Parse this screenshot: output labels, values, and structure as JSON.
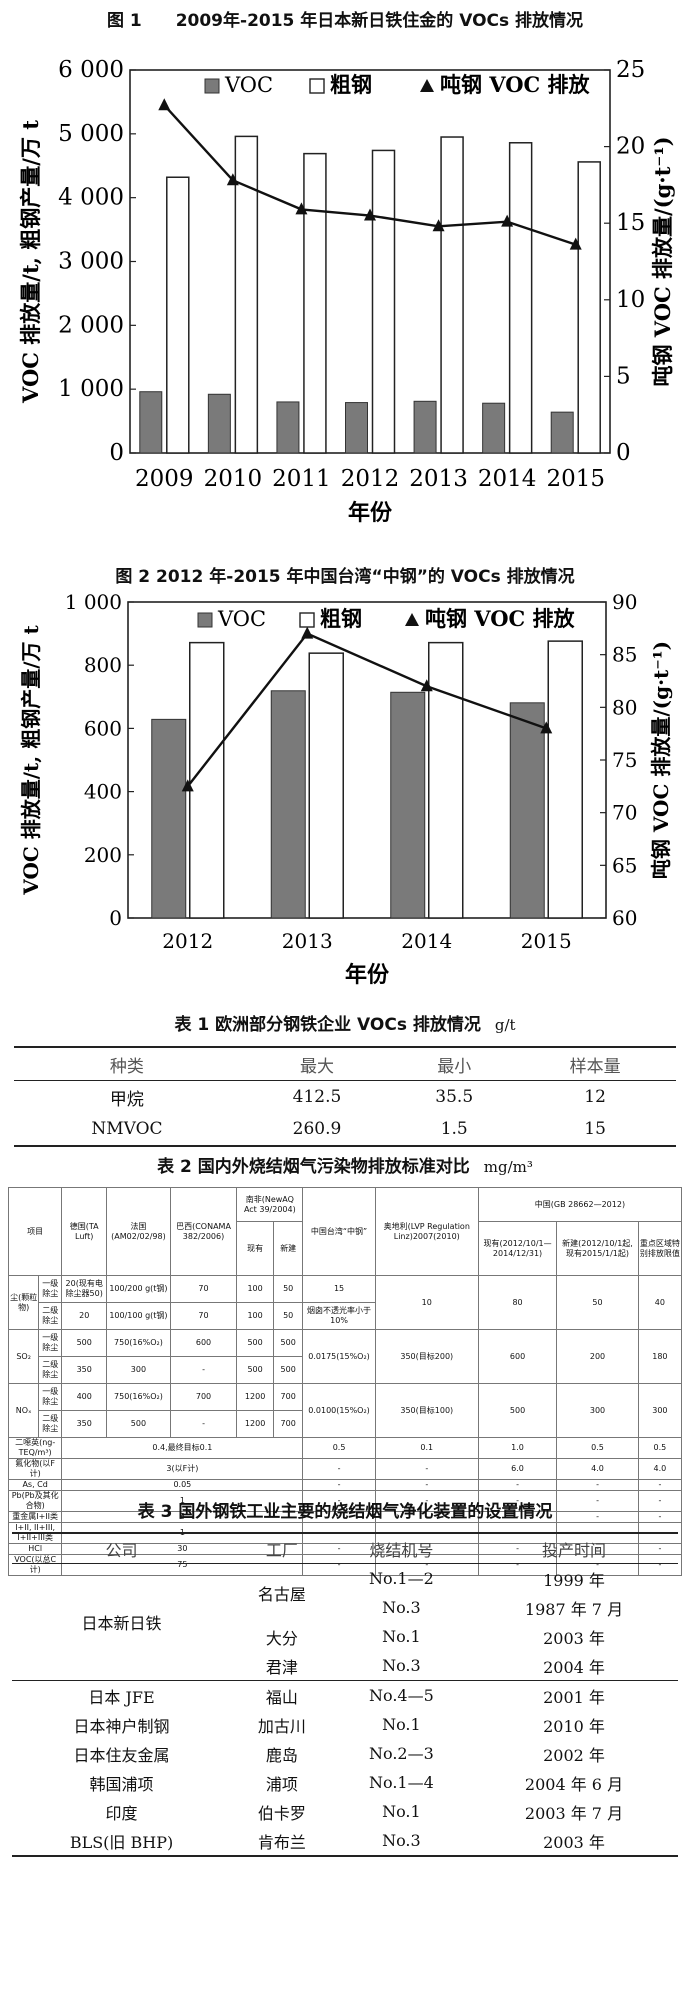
{
  "figures": [
    {
      "title": "图 1　　2009年-2015 年日本新日铁住金的 VOCs 排放情况",
      "chart_data": {
        "type": "bar",
        "categories": [
          "2009",
          "2010",
          "2011",
          "2012",
          "2013",
          "2014",
          "2015"
        ],
        "series": [
          {
            "name": "VOC",
            "kind": "bar",
            "axis": "left",
            "color": "#7a7a7a",
            "values": [
              960,
              920,
              800,
              790,
              810,
              780,
              640
            ]
          },
          {
            "name": "粗钢",
            "kind": "bar",
            "axis": "left",
            "color": "#ffffff",
            "values": [
              4320,
              4960,
              4690,
              4740,
              4950,
              4860,
              4560
            ]
          },
          {
            "name": "吨钢 VOC 排放",
            "kind": "line",
            "axis": "right",
            "color": "#111111",
            "values": [
              22.7,
              17.8,
              15.9,
              15.5,
              14.8,
              15.1,
              13.6
            ]
          }
        ],
        "xlabel": "年份",
        "ylabel": "VOC 排放量/t, 粗钢产量/万 t",
        "y2label": "吨钢 VOC 排放量/(g·t⁻¹)",
        "ylim": [
          0,
          6000
        ],
        "y2lim": [
          0,
          25
        ],
        "yticks": [
          "0",
          "1 000",
          "2 000",
          "3 000",
          "4 000",
          "5 000",
          "6 000"
        ],
        "y2ticks": [
          "0",
          "5",
          "10",
          "15",
          "20",
          "25"
        ],
        "legend": "top"
      }
    },
    {
      "title": "图 2 2012 年-2015 年中国台湾“中钢”的 VOCs 排放情况",
      "chart_data": {
        "type": "bar",
        "categories": [
          "2012",
          "2013",
          "2014",
          "2015"
        ],
        "series": [
          {
            "name": "VOC",
            "kind": "bar",
            "axis": "left",
            "color": "#7a7a7a",
            "values": [
              660,
              755,
              750,
              715
            ]
          },
          {
            "name": "粗钢",
            "kind": "bar",
            "axis": "left",
            "color": "#ffffff",
            "values": [
              915,
              880,
              915,
              920
            ]
          },
          {
            "name": "吨钢 VOC 排放",
            "kind": "line",
            "axis": "right",
            "color": "#111111",
            "values": [
              72.5,
              87,
              82,
              78
            ]
          }
        ],
        "xlabel": "年份",
        "ylabel": "VOC 排放量/t, 粗钢产量/万 t",
        "y2label": "吨钢 VOC 排放量/(g·t⁻¹)",
        "ylim": [
          0,
          1050
        ],
        "y2lim": [
          60,
          90
        ],
        "yticks": [
          "0",
          "200",
          "400",
          "600",
          "800",
          "1 000"
        ],
        "y2ticks": [
          "60",
          "65",
          "70",
          "75",
          "80",
          "85",
          "90"
        ],
        "legend": "top"
      }
    }
  ],
  "table1": {
    "title": "表 1 欧洲部分钢铁企业 VOCs 排放情况",
    "unit": "g/t",
    "headers": [
      "种类",
      "最大",
      "最小",
      "样本量"
    ],
    "rows": [
      [
        "甲烷",
        "412.5",
        "35.5",
        "12"
      ],
      [
        "NMVOC",
        "260.9",
        "1.5",
        "15"
      ]
    ]
  },
  "table2": {
    "title": "表 2 国内外烧结烟气污染物排放标准对比",
    "unit": "mg/m³",
    "h_item": "项目",
    "h_de": "德国(TA Luft)",
    "h_fr": "法国(AM02/02/98)",
    "h_br": "巴西(CONAMA 382/2006)",
    "h_za": "南非(NewAQ Act 39/2004)",
    "h_za_cur": "现有",
    "h_za_new": "新建",
    "h_tw": "中国台湾“中钢”",
    "h_at": "奥地利(LVP Regulation Linz)2007(2010)",
    "h_cn": "中国(GB 28662—2012)",
    "h_cn_cur": "现有(2012/10/1—2014/12/31)",
    "h_cn_new": "新建(2012/10/1起,现有2015/1/1起)",
    "h_cn_sp": "重点区域特别排放限值",
    "rows": [
      {
        "a": "尘(颗粒物)",
        "b": "一级除尘",
        "c": [
          "20(现有电除尘器50)",
          "100/200 g(t钢)",
          "70",
          "100",
          "50",
          "15",
          "10",
          "80",
          "50",
          "40"
        ]
      },
      {
        "a": "",
        "b": "二级除尘",
        "c": [
          "20",
          "100/100 g(t钢)",
          "70",
          "100",
          "50",
          "烟囱不透光率小于10%",
          "",
          "",
          "",
          ""
        ]
      },
      {
        "a": "SO₂",
        "b": "一级除尘",
        "c": [
          "500",
          "750(16%O₂)",
          "600",
          "500",
          "500",
          "0.0175(15%O₂)",
          "350(目标200)",
          "600",
          "200",
          "180"
        ]
      },
      {
        "a": "",
        "b": "二级除尘",
        "c": [
          "350",
          "300",
          "-",
          "500",
          "500",
          "",
          "",
          "",
          "",
          ""
        ]
      },
      {
        "a": "NOₓ",
        "b": "一级除尘",
        "c": [
          "400",
          "750(16%O₂)",
          "700",
          "1200",
          "700",
          "0.0100(15%O₂)",
          "350(目标100)",
          "500",
          "300",
          "300"
        ]
      },
      {
        "a": "",
        "b": "二级除尘",
        "c": [
          "350",
          "500",
          "-",
          "1200",
          "700",
          "",
          "",
          "",
          "",
          ""
        ]
      },
      {
        "a": "二噁英(ng-TEQ/m³)",
        "b": "",
        "c": [
          "0.4,最终目标0.1",
          "",
          "",
          "",
          "",
          "0.5",
          "0.1",
          "1.0",
          "0.5",
          "0.5"
        ]
      },
      {
        "a": "氟化物(以F计)",
        "b": "",
        "c": [
          "3(以F计)",
          "",
          "",
          "",
          "",
          "-",
          "-",
          "6.0",
          "4.0",
          "4.0"
        ]
      },
      {
        "a": "As, Cd",
        "b": "",
        "c": [
          "0.05",
          "",
          "",
          "",
          "",
          "-",
          "-",
          "-",
          "-",
          "-"
        ]
      },
      {
        "a": "Pb(Pb及其化合物)",
        "b": "",
        "c": [
          "1",
          "",
          "",
          "",
          "",
          "-",
          "-",
          "-",
          "-",
          "-"
        ]
      },
      {
        "a": "重金属I+II类",
        "b": "",
        "c": [
          "5",
          "",
          "",
          "",
          "",
          "-",
          "-",
          "-",
          "-",
          "-"
        ]
      },
      {
        "a": "I+II, II+III, I+II+III类",
        "b": "",
        "c": [
          "1",
          "",
          "",
          "",
          "",
          "-",
          "-",
          "-",
          "-",
          "-"
        ]
      },
      {
        "a": "HCl",
        "b": "",
        "c": [
          "30",
          "",
          "",
          "",
          "",
          "-",
          "-",
          "-",
          "-",
          "-"
        ]
      },
      {
        "a": "VOC(以总C计)",
        "b": "",
        "c": [
          "75",
          "",
          "",
          "",
          "",
          "-",
          "-",
          "-",
          "-",
          "-"
        ]
      }
    ]
  },
  "table3": {
    "title": "表 3 国外钢铁工业主要的烧结烟气净化装置的设置情况",
    "headers": [
      "公司",
      "工厂",
      "烧结机号",
      "投产时间"
    ],
    "rows": [
      [
        "日本新日铁",
        "名古屋",
        "No.1—2",
        "1999 年"
      ],
      [
        "",
        "",
        "No.3",
        "1987 年 7 月"
      ],
      [
        "",
        "大分",
        "No.1",
        "2003 年"
      ],
      [
        "",
        "君津",
        "No.3",
        "2004 年"
      ],
      [
        "日本 JFE",
        "福山",
        "No.4—5",
        "2001 年"
      ],
      [
        "日本神户制钢",
        "加古川",
        "No.1",
        "2010 年"
      ],
      [
        "日本住友金属",
        "鹿岛",
        "No.2—3",
        "2002 年"
      ],
      [
        "韩国浦项",
        "浦项",
        "No.1—4",
        "2004 年 6 月"
      ],
      [
        "印度",
        "伯卡罗",
        "No.1",
        "2003 年 7 月"
      ],
      [
        "BLS(旧 BHP)",
        "肯布兰",
        "No.3",
        "2003 年"
      ]
    ]
  }
}
